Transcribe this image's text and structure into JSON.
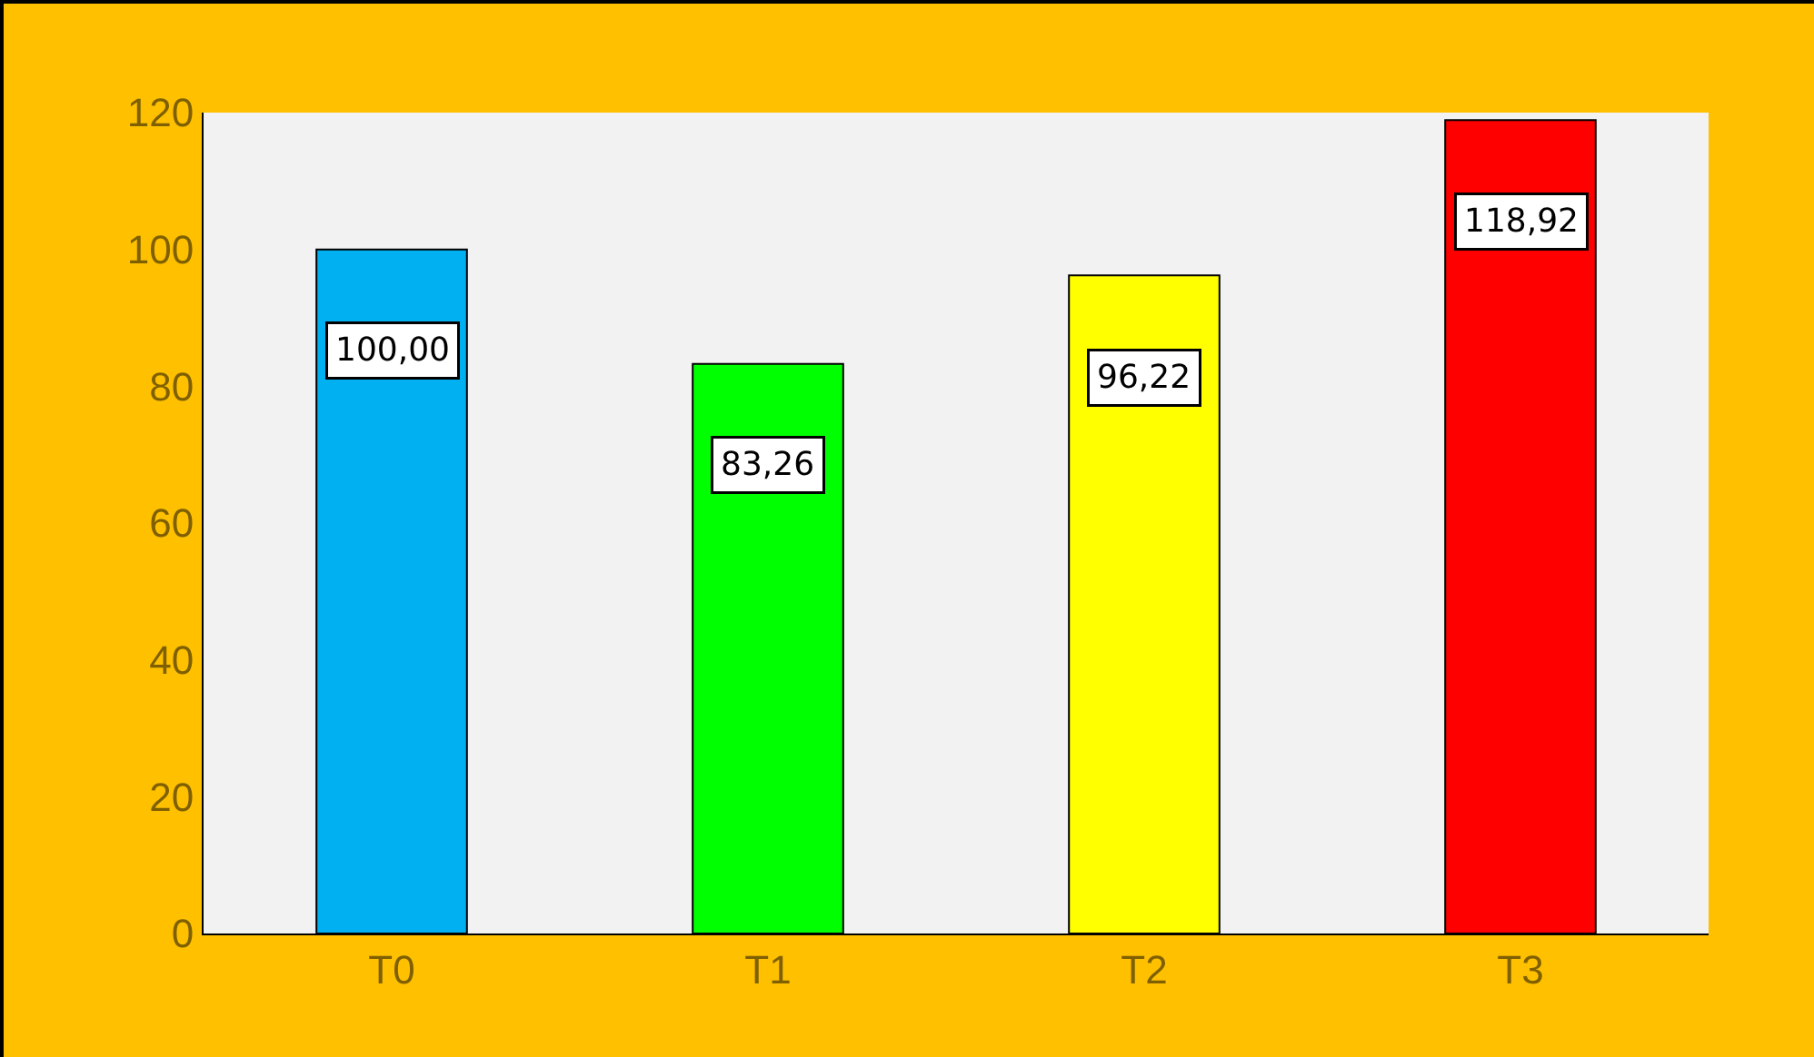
{
  "chart_data": {
    "type": "bar",
    "categories": [
      "T0",
      "T1",
      "T2",
      "T3"
    ],
    "values": [
      100.0,
      83.26,
      96.22,
      118.92
    ],
    "colors": [
      "#00b0f0",
      "#00ff00",
      "#ffff00",
      "#ff0000"
    ],
    "value_labels": [
      "100,00",
      "83,26",
      "96,22",
      "118,92"
    ],
    "ylim": [
      0,
      120
    ],
    "yticks": [
      0,
      20,
      40,
      60,
      80,
      100,
      120
    ]
  }
}
